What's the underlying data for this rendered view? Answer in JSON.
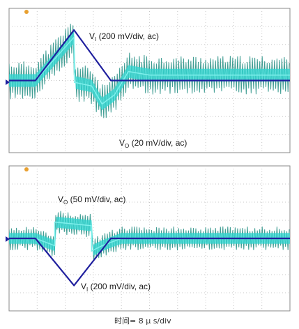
{
  "chart_data": [
    {
      "type": "line",
      "panel": "top",
      "x_unit": "µs",
      "xlim": [
        -16,
        64
      ],
      "ylim": [
        -4,
        4
      ],
      "series": [
        {
          "name": "VI (200 mV/div, ac)",
          "label_main": "V",
          "label_sub": "I",
          "label_rest": " (200 mV/div, ac)",
          "color": "#1f1f9e",
          "x": [
            -16,
            -8.5,
            2.5,
            13,
            64
          ],
          "y": [
            0,
            0,
            2.8,
            0,
            0
          ]
        },
        {
          "name": "VO (20 mV/div, ac)",
          "label_main": "V",
          "label_sub": "O",
          "label_rest": " (20 mV/div, ac)",
          "color": "#2ed6d0",
          "x": [
            -16,
            -8.5,
            2.5,
            2.6,
            7.5,
            10.5,
            14,
            18,
            24,
            64
          ],
          "y": [
            0,
            0,
            2.4,
            -0.1,
            -0.3,
            -1.3,
            -0.8,
            0.5,
            0.3,
            0.3
          ]
        }
      ]
    },
    {
      "type": "line",
      "panel": "bottom",
      "x_unit": "µs",
      "xlim": [
        -16,
        64
      ],
      "ylim": [
        -4,
        4
      ],
      "series": [
        {
          "name": "VO (50 mV/div, ac)",
          "label_main": "V",
          "label_sub": "O",
          "label_rest": " (50 mV/div, ac)",
          "color": "#2ed6d0",
          "x": [
            -16,
            -8.5,
            -3,
            -3,
            7.5,
            7.5,
            10.5,
            16,
            64
          ],
          "y": [
            0,
            0,
            -0.4,
            0.9,
            0.7,
            -0.7,
            -0.4,
            0,
            0
          ]
        },
        {
          "name": "VI (200 mV/div, ac)",
          "label_main": "V",
          "label_sub": "I",
          "label_rest": " (200 mV/div, ac)",
          "color": "#1f1f9e",
          "x": [
            -16,
            -8.5,
            2.5,
            13,
            64
          ],
          "y": [
            0,
            0,
            -2.6,
            0,
            0
          ]
        }
      ]
    }
  ],
  "footer": {
    "text": "时间= 8 µ s/div"
  },
  "colors": {
    "grid": "#c8c8c8",
    "frame": "#8a8a8a",
    "vi_trace": "#1f1f9e",
    "vo_trace": "#2ed6d0",
    "vo_dark": "#1f8c80",
    "marker_orange": "#e8a030",
    "marker_blue": "#1f1f9e"
  }
}
